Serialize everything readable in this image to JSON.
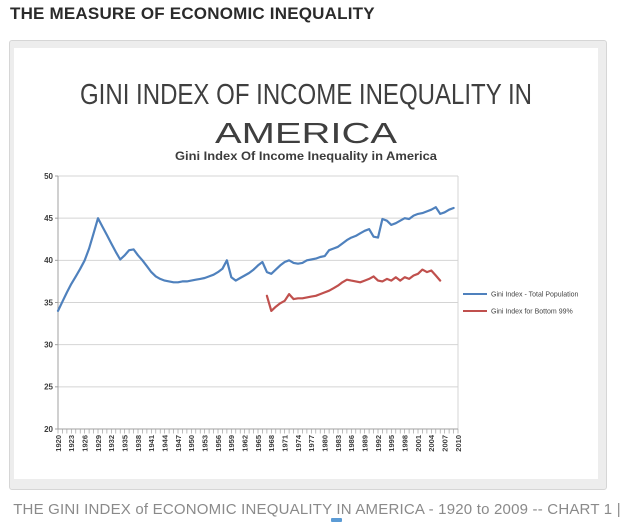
{
  "page": {
    "title": "THE MEASURE OF ECONOMIC INEQUALITY",
    "caption": "THE GINI INDEX of ECONOMIC INEQUALITY IN AMERICA - 1920 to 2009 -- CHART 1 |"
  },
  "chart": {
    "title_line1": "GINI INDEX OF INCOME INEQUALITY IN",
    "title_line2": "AMERICA",
    "subtitle": "Gini Index Of Income Inequality in America"
  },
  "colors": {
    "total_population_line": "#4f81bd",
    "bottom99_line": "#c0504d",
    "gridline": "#d4d4d4",
    "axis": "#a0a0a0",
    "axis_text": "#3c3c3c",
    "title_text": "#3f3f3f",
    "legend_text": "#444444"
  },
  "chart_data": {
    "type": "line",
    "title": "Gini Index Of Income Inequality in America",
    "xlabel": "",
    "ylabel": "",
    "ylim": [
      20,
      50
    ],
    "y_step": 5,
    "x_start": 1920,
    "x_end": 2010,
    "x_label_step": 3,
    "grid": true,
    "legend_position": "right",
    "series": [
      {
        "name": "Gini Index - Total Population",
        "color": "#4f81bd",
        "start_year": 1920,
        "values": [
          34.0,
          35.1,
          36.2,
          37.2,
          38.1,
          39.0,
          40.0,
          41.4,
          43.2,
          45.0,
          44.0,
          43.0,
          42.0,
          41.0,
          40.1,
          40.6,
          41.2,
          41.3,
          40.6,
          40.0,
          39.3,
          38.6,
          38.1,
          37.8,
          37.6,
          37.5,
          37.4,
          37.4,
          37.5,
          37.5,
          37.6,
          37.7,
          37.8,
          37.9,
          38.1,
          38.3,
          38.6,
          39.0,
          40.0,
          38.0,
          37.6,
          37.9,
          38.2,
          38.5,
          38.9,
          39.4,
          39.8,
          38.6,
          38.4,
          38.9,
          39.4,
          39.8,
          40.0,
          39.7,
          39.6,
          39.7,
          40.0,
          40.1,
          40.2,
          40.4,
          40.5,
          41.2,
          41.4,
          41.6,
          42.0,
          42.4,
          42.7,
          42.9,
          43.2,
          43.5,
          43.7,
          42.8,
          42.7,
          44.9,
          44.7,
          44.2,
          44.4,
          44.7,
          45.0,
          44.9,
          45.3,
          45.5,
          45.6,
          45.8,
          46.0,
          46.3,
          45.5,
          45.7,
          46.0,
          46.2
        ]
      },
      {
        "name": "Gini Index for Bottom 99%",
        "color": "#c0504d",
        "start_year": 1967,
        "values": [
          35.8,
          34.0,
          34.5,
          34.9,
          35.2,
          36.0,
          35.4,
          35.5,
          35.5,
          35.6,
          35.7,
          35.8,
          36.0,
          36.2,
          36.4,
          36.7,
          37.0,
          37.4,
          37.7,
          37.6,
          37.5,
          37.4,
          37.6,
          37.8,
          38.1,
          37.6,
          37.5,
          37.8,
          37.6,
          38.0,
          37.6,
          38.0,
          37.8,
          38.2,
          38.4,
          38.9,
          38.6,
          38.8,
          38.2,
          37.6
        ]
      }
    ]
  }
}
